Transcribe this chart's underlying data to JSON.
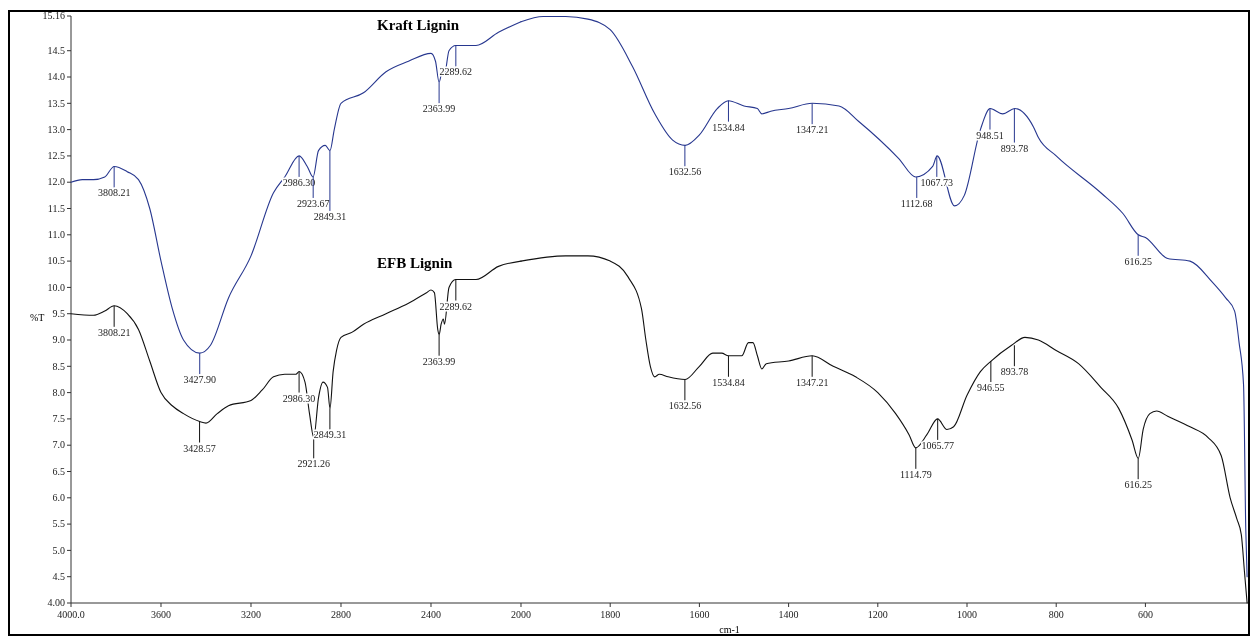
{
  "chart_data": [
    {
      "type": "line",
      "ylabel": "%T",
      "xlim": [
        4000,
        2000
      ],
      "ylim": [
        4,
        15.16
      ],
      "xticks": [
        {
          "value": 4000,
          "label": "4000.0"
        },
        3600,
        3200,
        2800,
        2400
      ],
      "yticks": [
        {
          "value": 4,
          "label": "4.00"
        },
        4.5,
        {
          "value": 5,
          "label": "5.0"
        },
        5.5,
        {
          "value": 6,
          "label": "6.0"
        },
        6.5,
        {
          "value": 7,
          "label": "7.0"
        },
        7.5,
        {
          "value": 8,
          "label": "8.0"
        },
        8.5,
        {
          "value": 9,
          "label": "9.0"
        },
        9.5,
        {
          "value": 10,
          "label": "10.0"
        },
        10.5,
        {
          "value": 11,
          "label": "11.0"
        },
        11.5,
        {
          "value": 12,
          "label": "12.0"
        },
        12.5,
        {
          "value": 13,
          "label": "13.0"
        },
        13.5,
        {
          "value": 14,
          "label": "14.0"
        },
        14.5,
        {
          "value": 15.16,
          "label": "15.16"
        }
      ],
      "grid": false,
      "legend": false,
      "marker": "none",
      "line_style": "solid",
      "series": [
        {
          "name": "Kraft Lignin",
          "color": "#27378f",
          "x": [
            4000,
            3950,
            3900,
            3850,
            3808,
            3750,
            3700,
            3650,
            3600,
            3550,
            3500,
            3428,
            3380,
            3300,
            3200,
            3100,
            3050,
            2986,
            2950,
            2924,
            2900,
            2870,
            2849,
            2830,
            2800,
            2700,
            2600,
            2500,
            2400,
            2380,
            2364,
            2350,
            2340,
            2320,
            2290,
            2200,
            2100,
            2000
          ],
          "values": [
            12.0,
            12.05,
            12.05,
            12.1,
            12.3,
            12.2,
            12.05,
            11.5,
            10.5,
            9.6,
            9.0,
            8.75,
            8.9,
            9.8,
            10.6,
            11.8,
            12.1,
            12.5,
            12.3,
            12.1,
            12.6,
            12.7,
            12.6,
            13.0,
            13.5,
            13.7,
            14.1,
            14.3,
            14.45,
            14.3,
            13.9,
            14.1,
            14.05,
            14.5,
            14.6,
            14.6,
            14.85,
            15.05
          ]
        },
        {
          "name": "EFB Lignin",
          "color": "#111111",
          "x": [
            4000,
            3900,
            3850,
            3808,
            3750,
            3700,
            3650,
            3600,
            3550,
            3500,
            3428,
            3400,
            3350,
            3300,
            3200,
            3150,
            3100,
            3050,
            3000,
            2986,
            2960,
            2940,
            2921,
            2900,
            2880,
            2860,
            2849,
            2835,
            2820,
            2800,
            2750,
            2700,
            2600,
            2500,
            2420,
            2400,
            2385,
            2370,
            2364,
            2355,
            2345,
            2340,
            2320,
            2290,
            2200,
            2100,
            2000
          ],
          "values": [
            9.5,
            9.47,
            9.55,
            9.65,
            9.5,
            9.2,
            8.6,
            8.0,
            7.75,
            7.6,
            7.45,
            7.42,
            7.6,
            7.75,
            7.85,
            8.05,
            8.3,
            8.35,
            8.35,
            8.4,
            8.2,
            7.6,
            7.15,
            7.9,
            8.2,
            8.1,
            7.7,
            8.4,
            8.8,
            9.05,
            9.15,
            9.3,
            9.5,
            9.7,
            9.9,
            9.95,
            9.9,
            9.2,
            9.1,
            9.3,
            9.4,
            9.3,
            10.0,
            10.15,
            10.15,
            10.4,
            10.5
          ]
        }
      ],
      "annotations": [
        {
          "text": "3808.21",
          "x": 3808.21,
          "y": 12.3
        },
        {
          "text": "3427.90",
          "x": 3427.9,
          "y": 8.75
        },
        {
          "text": "2986.30",
          "x": 2986.3,
          "y": 12.5
        },
        {
          "text": "2923.67",
          "x": 2923.67,
          "y": 12.1
        },
        {
          "text": "2849.31",
          "x": 2849.31,
          "y": 12.6
        },
        {
          "text": "2363.99",
          "x": 2363.99,
          "y": 13.9
        },
        {
          "text": "2289.62",
          "x": 2289.62,
          "y": 14.6
        },
        {
          "text": "3808.21",
          "x": 3808.21,
          "y": 9.65
        },
        {
          "text": "3428.57",
          "x": 3428.57,
          "y": 7.45
        },
        {
          "text": "2986.30",
          "x": 2986.3,
          "y": 8.4
        },
        {
          "text": "2921.26",
          "x": 2921.26,
          "y": 7.15
        },
        {
          "text": "2849.31",
          "x": 2849.31,
          "y": 7.7
        },
        {
          "text": "2363.99",
          "x": 2363.99,
          "y": 9.1
        },
        {
          "text": "2289.62",
          "x": 2289.62,
          "y": 10.15
        }
      ]
    },
    {
      "type": "line",
      "xlabel": "cm-1",
      "tick_labels": "x",
      "xlim": [
        2000,
        370
      ],
      "ylim": [
        4,
        15.16
      ],
      "xticks": [
        2000,
        1800,
        1600,
        1400,
        1200,
        1000,
        800,
        600
      ],
      "grid": false,
      "legend": false,
      "marker": "none",
      "line_style": "solid",
      "series": [
        {
          "color": "#27378f",
          "x": [
            2000,
            1950,
            1900,
            1850,
            1800,
            1750,
            1700,
            1660,
            1632,
            1600,
            1560,
            1535,
            1500,
            1470,
            1460,
            1440,
            1400,
            1347,
            1287,
            1242,
            1153,
            1115,
            1077,
            1067,
            1028,
            1006,
            970,
            948,
            920,
            893,
            851,
            840,
            800,
            700,
            650,
            616,
            600,
            550,
            500,
            450,
            420,
            400,
            390,
            380,
            375,
            372
          ],
          "values": [
            15.05,
            15.15,
            15.15,
            15.1,
            14.9,
            14.2,
            13.3,
            12.8,
            12.7,
            12.9,
            13.4,
            13.55,
            13.45,
            13.4,
            13.3,
            13.35,
            13.4,
            13.5,
            13.45,
            13.15,
            12.45,
            12.1,
            12.3,
            12.5,
            11.55,
            11.75,
            13.0,
            13.4,
            13.3,
            13.4,
            13.05,
            12.85,
            12.5,
            11.8,
            11.4,
            11.0,
            10.95,
            10.55,
            10.5,
            10.1,
            9.8,
            9.55,
            8.95,
            8.15,
            5.4,
            4.5
          ]
        },
        {
          "color": "#111111",
          "x": [
            2000,
            1900,
            1850,
            1800,
            1760,
            1730,
            1720,
            1710,
            1700,
            1690,
            1670,
            1632,
            1600,
            1570,
            1550,
            1535,
            1505,
            1490,
            1480,
            1470,
            1460,
            1450,
            1400,
            1347,
            1300,
            1250,
            1200,
            1160,
            1130,
            1115,
            1090,
            1066,
            1045,
            1030,
            1000,
            970,
            946,
            900,
            870,
            840,
            800,
            750,
            700,
            660,
            630,
            616,
            605,
            590,
            575,
            550,
            500,
            460,
            430,
            410,
            395,
            385,
            378,
            372
          ],
          "values": [
            10.5,
            10.6,
            10.6,
            10.5,
            10.2,
            9.6,
            9.0,
            8.5,
            8.3,
            8.35,
            8.3,
            8.25,
            8.5,
            8.75,
            8.75,
            8.7,
            8.7,
            8.95,
            8.95,
            8.7,
            8.45,
            8.55,
            8.6,
            8.7,
            8.5,
            8.3,
            8.0,
            7.6,
            7.2,
            6.95,
            7.2,
            7.5,
            7.3,
            7.35,
            7.95,
            8.4,
            8.6,
            8.9,
            9.05,
            9.0,
            8.8,
            8.55,
            8.1,
            7.7,
            7.1,
            6.75,
            7.3,
            7.6,
            7.65,
            7.55,
            7.35,
            7.15,
            6.8,
            6.0,
            5.6,
            5.3,
            4.6,
            4.0
          ]
        }
      ],
      "annotations": [
        {
          "text": "1632.56",
          "x": 1632.56,
          "y": 12.7
        },
        {
          "text": "1534.84",
          "x": 1534.84,
          "y": 13.55
        },
        {
          "text": "1347.21",
          "x": 1347.21,
          "y": 13.5
        },
        {
          "text": "1112.68",
          "x": 1112.68,
          "y": 12.1
        },
        {
          "text": "1067.73",
          "x": 1067.73,
          "y": 12.5
        },
        {
          "text": "948.51",
          "x": 948.51,
          "y": 13.4
        },
        {
          "text": "893.78",
          "x": 893.78,
          "y": 13.4
        },
        {
          "text": "616.25",
          "x": 616.25,
          "y": 11.0
        },
        {
          "text": "1632.56",
          "x": 1632.56,
          "y": 8.25
        },
        {
          "text": "1534.84",
          "x": 1534.84,
          "y": 8.7
        },
        {
          "text": "1347.21",
          "x": 1347.21,
          "y": 8.7
        },
        {
          "text": "1114.79",
          "x": 1114.79,
          "y": 6.95
        },
        {
          "text": "1065.77",
          "x": 1065.77,
          "y": 7.5
        },
        {
          "text": "946.55",
          "x": 946.55,
          "y": 8.6
        },
        {
          "text": "893.78",
          "x": 893.78,
          "y": 8.9
        },
        {
          "text": "616.25",
          "x": 616.25,
          "y": 6.75
        }
      ]
    }
  ]
}
